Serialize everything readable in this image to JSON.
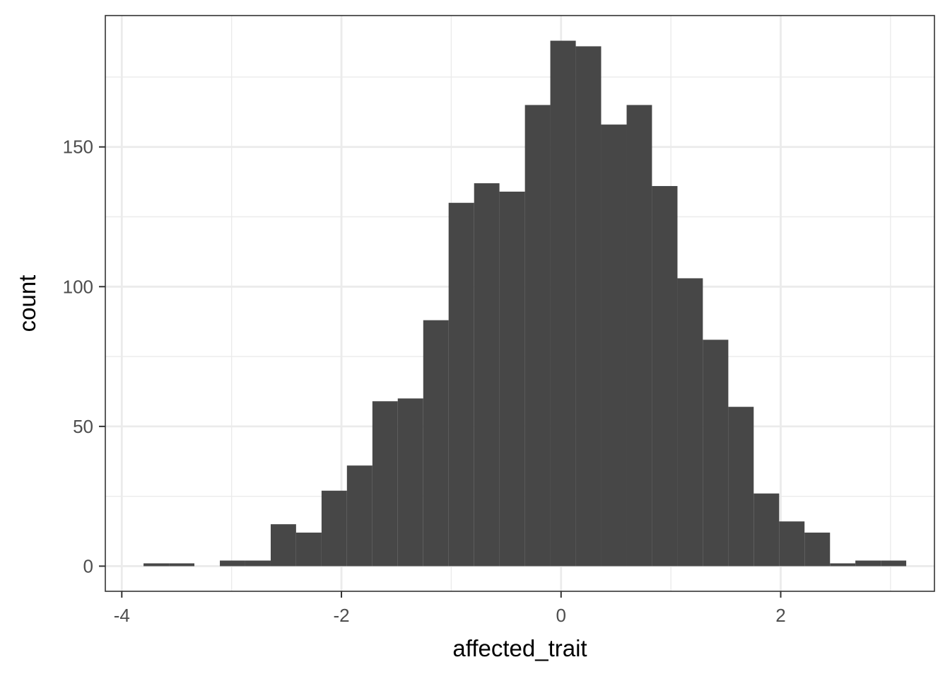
{
  "chart_data": {
    "type": "bar",
    "subtype": "histogram",
    "title": "",
    "xlabel": "affected_trait",
    "ylabel": "count",
    "xlim": [
      -4.15,
      3.4
    ],
    "ylim": [
      -9,
      197
    ],
    "x_ticks": [
      -4,
      -2,
      0,
      2
    ],
    "y_ticks": [
      0,
      50,
      100,
      150
    ],
    "x_tick_labels": [
      "-4",
      "-2",
      "0",
      "2"
    ],
    "y_tick_labels": [
      "0",
      "50",
      "100",
      "150"
    ],
    "grid": true,
    "theme": "bw",
    "legend": "none",
    "bar_color": "#474747",
    "bin_width": 0.2315,
    "bins": [
      {
        "x0": -3.802,
        "x1": -3.57,
        "count": 1
      },
      {
        "x0": -3.57,
        "x1": -3.339,
        "count": 1
      },
      {
        "x0": -3.339,
        "x1": -3.107,
        "count": 0
      },
      {
        "x0": -3.107,
        "x1": -2.876,
        "count": 2
      },
      {
        "x0": -2.876,
        "x1": -2.644,
        "count": 2
      },
      {
        "x0": -2.644,
        "x1": -2.413,
        "count": 15
      },
      {
        "x0": -2.413,
        "x1": -2.181,
        "count": 12
      },
      {
        "x0": -2.181,
        "x1": -1.95,
        "count": 27
      },
      {
        "x0": -1.95,
        "x1": -1.718,
        "count": 36
      },
      {
        "x0": -1.718,
        "x1": -1.487,
        "count": 59
      },
      {
        "x0": -1.487,
        "x1": -1.255,
        "count": 60
      },
      {
        "x0": -1.255,
        "x1": -1.024,
        "count": 88
      },
      {
        "x0": -1.024,
        "x1": -0.792,
        "count": 130
      },
      {
        "x0": -0.792,
        "x1": -0.561,
        "count": 137
      },
      {
        "x0": -0.561,
        "x1": -0.329,
        "count": 134
      },
      {
        "x0": -0.329,
        "x1": -0.098,
        "count": 165
      },
      {
        "x0": -0.098,
        "x1": 0.134,
        "count": 188
      },
      {
        "x0": 0.134,
        "x1": 0.365,
        "count": 186
      },
      {
        "x0": 0.365,
        "x1": 0.597,
        "count": 158
      },
      {
        "x0": 0.597,
        "x1": 0.828,
        "count": 165
      },
      {
        "x0": 0.828,
        "x1": 1.06,
        "count": 136
      },
      {
        "x0": 1.06,
        "x1": 1.291,
        "count": 103
      },
      {
        "x0": 1.291,
        "x1": 1.523,
        "count": 81
      },
      {
        "x0": 1.523,
        "x1": 1.754,
        "count": 57
      },
      {
        "x0": 1.754,
        "x1": 1.986,
        "count": 26
      },
      {
        "x0": 1.986,
        "x1": 2.217,
        "count": 16
      },
      {
        "x0": 2.217,
        "x1": 2.449,
        "count": 12
      },
      {
        "x0": 2.449,
        "x1": 2.68,
        "count": 1
      },
      {
        "x0": 2.68,
        "x1": 2.912,
        "count": 2
      },
      {
        "x0": 2.912,
        "x1": 3.143,
        "count": 2
      }
    ]
  }
}
